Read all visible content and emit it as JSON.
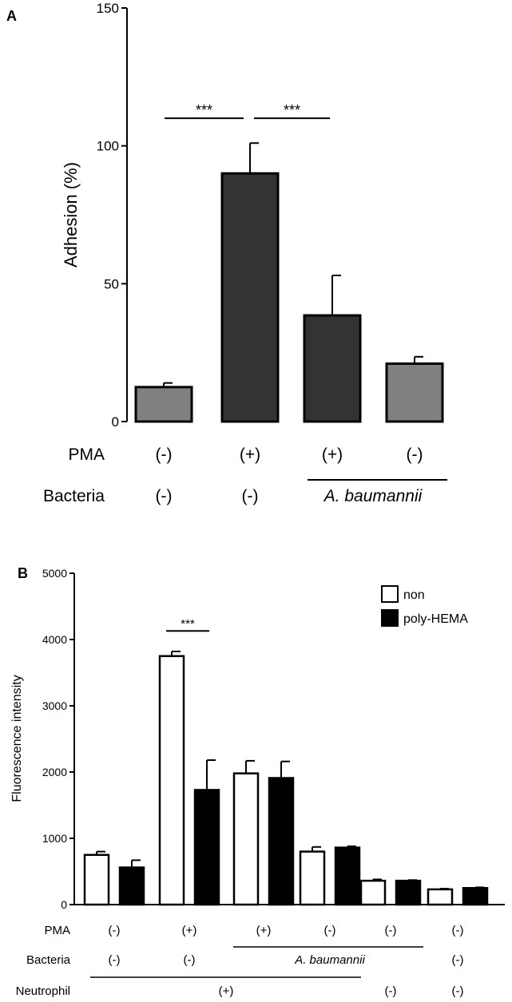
{
  "chart_data": [
    {
      "panel": "A",
      "type": "bar",
      "ylabel": "Adhesion (%)",
      "xlabel": "",
      "ylim": [
        0,
        150
      ],
      "yticks": [
        0,
        50,
        100,
        150
      ],
      "categories": [
        "1",
        "2",
        "3",
        "4"
      ],
      "values": [
        12.5,
        90,
        38.5,
        21
      ],
      "errors": [
        1.5,
        11,
        14.5,
        2.5
      ],
      "bar_colors": [
        "#808080",
        "#333333",
        "#333333",
        "#808080"
      ],
      "significance": [
        {
          "from": 0,
          "to": 1,
          "label": "***",
          "y": 110
        },
        {
          "from": 1,
          "to": 2,
          "label": "***",
          "y": 110
        }
      ],
      "condition_rows": [
        {
          "label": "PMA",
          "cells": [
            "(-)",
            "(+)",
            "(+)",
            "(-)"
          ]
        },
        {
          "label": "Bacteria",
          "cells": [
            "(-)",
            "(-)"
          ],
          "span_label": "A. baumannii",
          "span": [
            2,
            3
          ]
        }
      ]
    },
    {
      "panel": "B",
      "type": "bar",
      "ylabel": "Fluorescence intensity",
      "xlabel": "",
      "ylim": [
        0,
        5000
      ],
      "yticks": [
        0,
        1000,
        2000,
        3000,
        4000,
        5000
      ],
      "categories": [
        "1",
        "2",
        "3",
        "4",
        "5",
        "6"
      ],
      "series": [
        {
          "name": "non",
          "color": "#ffffff",
          "values": [
            750,
            3750,
            1980,
            800,
            360,
            230
          ],
          "errors": [
            50,
            70,
            190,
            70,
            20,
            10
          ]
        },
        {
          "name": "poly-HEMA",
          "color": "#000000",
          "values": [
            560,
            1730,
            1910,
            860,
            360,
            250
          ],
          "errors": [
            110,
            450,
            250,
            20,
            10,
            10
          ]
        }
      ],
      "legend_position": "top-right",
      "significance": [
        {
          "group": 1,
          "label": "***",
          "y": 4130
        }
      ],
      "condition_rows": [
        {
          "label": "PMA",
          "cells": [
            "(-)",
            "(+)",
            "(+)",
            "(-)",
            "(-)",
            "(-)"
          ]
        },
        {
          "label": "Bacteria",
          "cells": [
            "(-)",
            "(-)",
            "",
            "",
            "",
            "(-)"
          ],
          "span_label": "A. baumannii",
          "span": [
            2,
            4
          ]
        },
        {
          "label": "Neutrophil",
          "cells": [
            "",
            "",
            "",
            "",
            "(-)",
            "(-)"
          ],
          "span_label": "(+)",
          "span": [
            0,
            3
          ]
        }
      ]
    }
  ],
  "panel_labels": [
    "A",
    "B"
  ]
}
